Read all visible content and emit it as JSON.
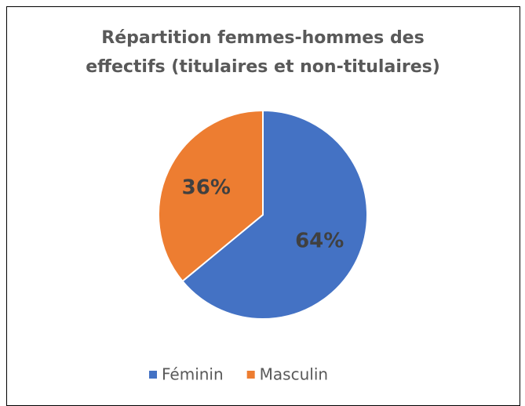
{
  "chart_data": {
    "type": "pie",
    "title": "Répartition femmes-hommes des effectifs (titulaires et non-titulaires)",
    "categories": [
      "Féminin",
      "Masculin"
    ],
    "values": [
      64,
      36
    ],
    "value_labels": [
      "64%",
      "36%"
    ],
    "colors": [
      "#4472c4",
      "#ed7d31"
    ],
    "legend": "bottom"
  }
}
